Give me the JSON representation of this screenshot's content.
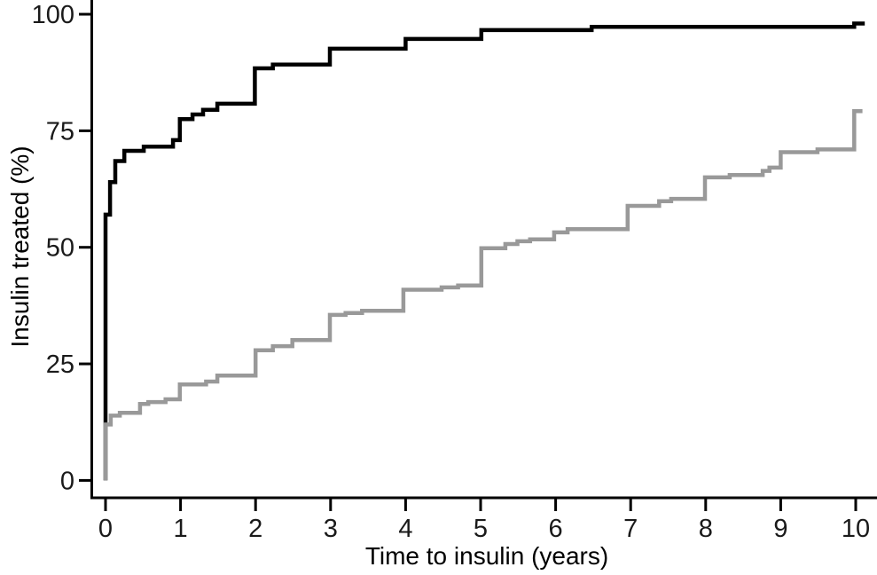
{
  "chart_data": {
    "type": "line",
    "subtype": "step-after",
    "title": "",
    "xlabel": "Time to insulin (years)",
    "ylabel": "Insulin treated (%)",
    "xlim": [
      0,
      10.28
    ],
    "ylim": [
      0,
      103
    ],
    "x_ticks": [
      0,
      1,
      2,
      3,
      4,
      5,
      6,
      7,
      8,
      9,
      10
    ],
    "y_ticks": [
      0,
      25,
      50,
      75,
      100
    ],
    "grid": false,
    "legend": "none",
    "series": [
      {
        "name": "black-curve",
        "color": "#000000",
        "stroke_width": 4.5,
        "origin": [
          0,
          0
        ],
        "end_t": 10.12,
        "steps": [
          [
            0,
            57
          ],
          [
            0.06,
            64
          ],
          [
            0.13,
            68.5
          ],
          [
            0.25,
            70.7
          ],
          [
            0.51,
            71.6
          ],
          [
            0.9,
            73
          ],
          [
            0.99,
            77.5
          ],
          [
            1.16,
            78.5
          ],
          [
            1.3,
            79.5
          ],
          [
            1.49,
            80.8
          ],
          [
            1.99,
            88.4
          ],
          [
            2.23,
            89.2
          ],
          [
            2.99,
            92.6
          ],
          [
            4.0,
            94.7
          ],
          [
            5.01,
            96.6
          ],
          [
            6.48,
            97.3
          ],
          [
            9.98,
            98.0
          ]
        ]
      },
      {
        "name": "gray-curve",
        "color": "#999999",
        "stroke_width": 4.5,
        "origin": [
          0,
          0
        ],
        "end_t": 10.09,
        "steps": [
          [
            0,
            12
          ],
          [
            0.07,
            13.9
          ],
          [
            0.19,
            14.5
          ],
          [
            0.46,
            16.4
          ],
          [
            0.57,
            16.8
          ],
          [
            0.8,
            17.4
          ],
          [
            0.99,
            20.6
          ],
          [
            1.34,
            21.2
          ],
          [
            1.49,
            22.5
          ],
          [
            2.0,
            27.9
          ],
          [
            2.23,
            28.8
          ],
          [
            2.49,
            30.1
          ],
          [
            2.99,
            35.5
          ],
          [
            3.2,
            35.9
          ],
          [
            3.42,
            36.4
          ],
          [
            3.97,
            40.9
          ],
          [
            4.48,
            41.4
          ],
          [
            4.7,
            41.8
          ],
          [
            5.01,
            49.8
          ],
          [
            5.33,
            50.7
          ],
          [
            5.49,
            51.3
          ],
          [
            5.66,
            51.7
          ],
          [
            5.98,
            53.2
          ],
          [
            6.16,
            53.9
          ],
          [
            6.96,
            58.9
          ],
          [
            7.38,
            59.9
          ],
          [
            7.54,
            60.4
          ],
          [
            7.99,
            65.0
          ],
          [
            8.32,
            65.5
          ],
          [
            8.76,
            66.4
          ],
          [
            8.85,
            67.1
          ],
          [
            9.0,
            70.4
          ],
          [
            9.49,
            71.0
          ],
          [
            9.98,
            79.2
          ]
        ]
      }
    ]
  },
  "colors": {
    "axis": "#000000",
    "tick_label": "#1a1a1a",
    "background": "#ffffff"
  }
}
